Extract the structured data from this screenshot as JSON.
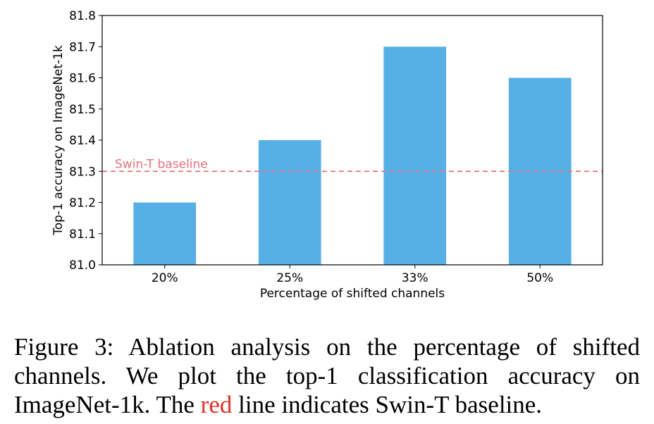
{
  "chart_data": {
    "type": "bar",
    "categories": [
      "20%",
      "25%",
      "33%",
      "50%"
    ],
    "values": [
      81.2,
      81.4,
      81.7,
      81.6
    ],
    "xlabel": "Percentage of shifted channels",
    "ylabel": "Top-1 accuracy on ImageNet-1k",
    "ylim": [
      81.0,
      81.8
    ],
    "yticks": [
      "81.0",
      "81.1",
      "81.2",
      "81.3",
      "81.4",
      "81.5",
      "81.6",
      "81.7",
      "81.8"
    ],
    "grid": false,
    "bar_color": "#56b0e6",
    "reference_line": {
      "label": "Swin-T baseline",
      "value": 81.3,
      "color": "#e8707a",
      "style": "dashed"
    }
  },
  "caption": {
    "prefix": "Figure 3: Ablation analysis on the percentage of shifted channels. We plot the top-1 classification accuracy on ImageNet-1k. The ",
    "highlight": "red",
    "suffix": " line indicates Swin-T baseline.",
    "highlight_color": "#e0302a"
  }
}
